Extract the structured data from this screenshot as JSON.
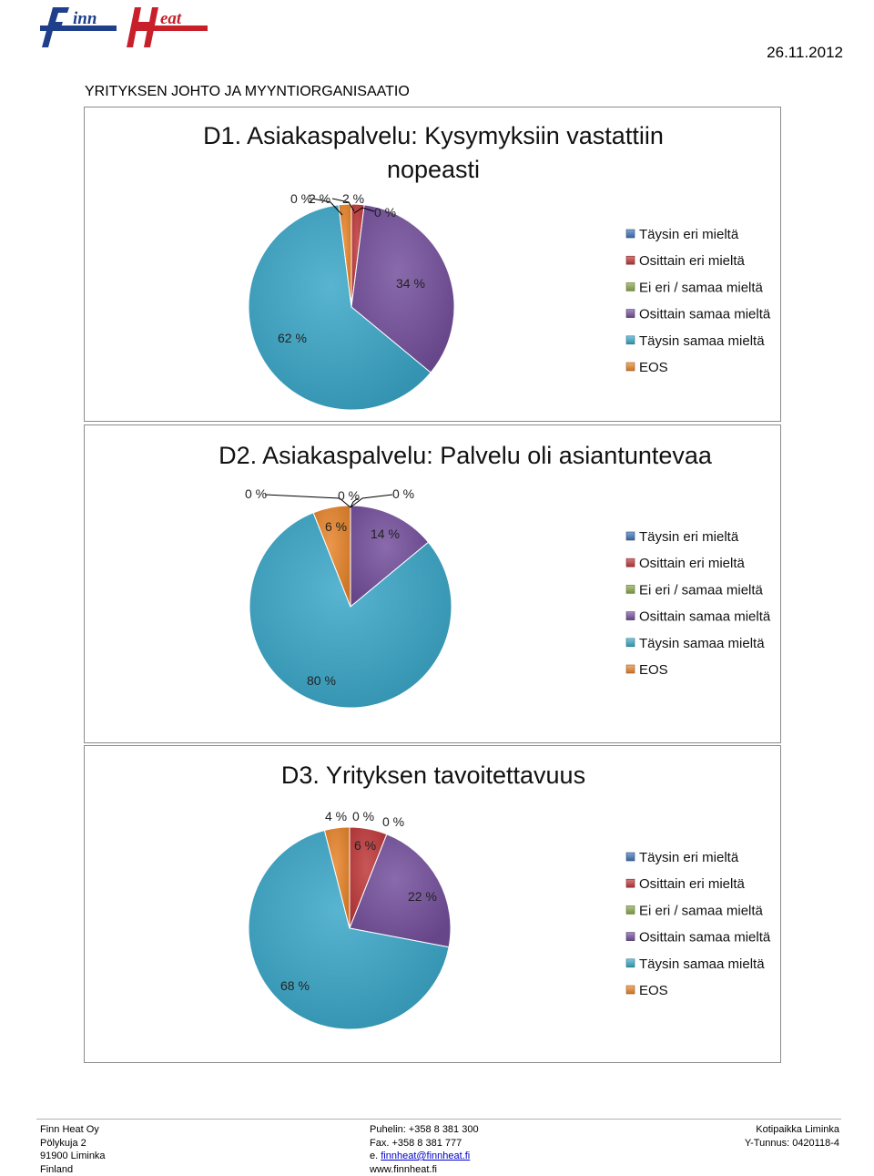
{
  "header": {
    "logo_text_1": "inn",
    "logo_text_2": "eat",
    "date": "26.11.2012",
    "section_title": "YRITYKSEN JOHTO JA MYYNTIORGANISAATIO"
  },
  "legend_items": [
    {
      "label": "Täysin eri mieltä",
      "color": "#3f73b8"
    },
    {
      "label": "Osittain eri mieltä",
      "color": "#c0393a"
    },
    {
      "label": "Ei eri / samaa mieltä",
      "color": "#8aa84a"
    },
    {
      "label": "Osittain samaa mieltä",
      "color": "#74509c"
    },
    {
      "label": "Täysin samaa mieltä",
      "color": "#3aa7c8"
    },
    {
      "label": "EOS",
      "color": "#e8852b"
    }
  ],
  "chart_data": [
    {
      "type": "pie",
      "title": "D1. Asiakaspalvelu: Kysymyksiin vastattiin nopeasti",
      "categories": [
        "Täysin eri mieltä",
        "Osittain eri mieltä",
        "Ei eri / samaa mieltä",
        "Osittain samaa mieltä",
        "Täysin samaa mieltä",
        "EOS"
      ],
      "values": [
        0,
        2,
        0,
        34,
        62,
        2
      ],
      "data_labels": [
        "0 %",
        "2 %",
        "0 %",
        "34 %",
        "62 %",
        "2 %"
      ],
      "legend": "right"
    },
    {
      "type": "pie",
      "title": "D2. Asiakaspalvelu: Palvelu oli asiantuntevaa",
      "categories": [
        "Täysin eri mieltä",
        "Osittain eri mieltä",
        "Ei eri / samaa mieltä",
        "Osittain samaa mieltä",
        "Täysin samaa mieltä",
        "EOS"
      ],
      "values": [
        0,
        0,
        0,
        14,
        80,
        6
      ],
      "data_labels": [
        "0 %",
        "0 %",
        "0 %",
        "14 %",
        "80 %",
        "6 %"
      ],
      "legend": "right"
    },
    {
      "type": "pie",
      "title": "D3. Yrityksen tavoitettavuus",
      "categories": [
        "Täysin eri mieltä",
        "Osittain eri mieltä",
        "Ei eri / samaa mieltä",
        "Osittain samaa mieltä",
        "Täysin samaa mieltä",
        "EOS"
      ],
      "values": [
        0,
        6,
        0,
        22,
        68,
        4
      ],
      "data_labels": [
        "0 %",
        "6 %",
        "0 %",
        "22 %",
        "68 %",
        "4 %"
      ],
      "legend": "right"
    }
  ],
  "footer": {
    "col1": [
      "Finn Heat Oy",
      "Pölykuja 2",
      "91900 Liminka",
      "Finland"
    ],
    "col2": [
      "Puhelin: +358 8 381 300",
      "Fax. +358 8 381 777"
    ],
    "email_prefix": "e. ",
    "email": "finnheat@finnheat.fi",
    "web": "www.finnheat.fi",
    "col3": [
      "Kotipaikka Liminka",
      "Y-Tunnus: 0420118-4"
    ]
  }
}
